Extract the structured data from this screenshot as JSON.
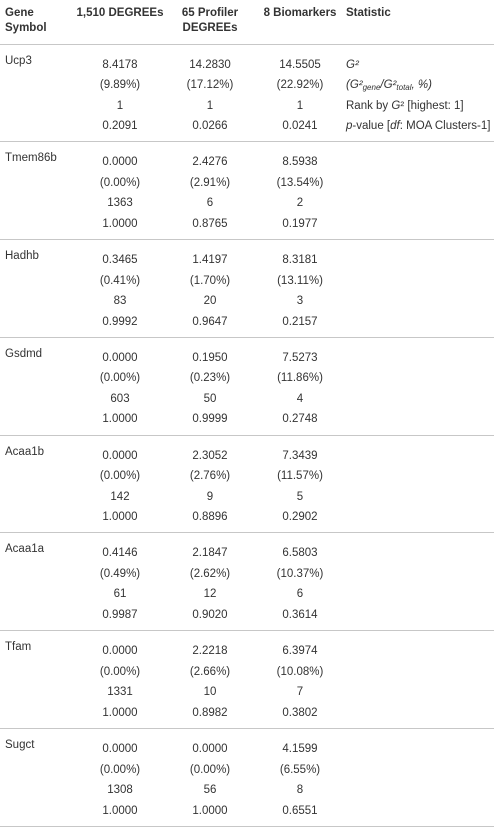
{
  "headers": {
    "gene_symbol": "Gene Symbol",
    "col1": "1,510 DEGREEs",
    "col2": "65 Profiler DEGREEs",
    "col3": "8 Biomarkers",
    "statistic": "Statistic"
  },
  "statistic_labels": {
    "g2": "G²",
    "ratio_prefix": "(G²",
    "ratio_sub1": "gene",
    "ratio_mid": "/G²",
    "ratio_sub2": "total",
    "ratio_suffix": ", %)",
    "rank_prefix": "Rank by ",
    "rank_g": "G",
    "rank_suffix": "² [highest: 1]",
    "pvalue_p": "p",
    "pvalue_mid": "-value [",
    "pvalue_df": "df",
    "pvalue_suffix": ": MOA Clusters-1]"
  },
  "rows": [
    {
      "gene": "Ucp3",
      "c1": [
        "8.4178",
        "(9.89%)",
        "1",
        "0.2091"
      ],
      "c2": [
        "14.2830",
        "(17.12%)",
        "1",
        "0.0266"
      ],
      "c3": [
        "14.5505",
        "(22.92%)",
        "1",
        "0.0241"
      ]
    },
    {
      "gene": "Tmem86b",
      "c1": [
        "0.0000",
        "(0.00%)",
        "1363",
        "1.0000"
      ],
      "c2": [
        "2.4276",
        "(2.91%)",
        "6",
        "0.8765"
      ],
      "c3": [
        "8.5938",
        "(13.54%)",
        "2",
        "0.1977"
      ]
    },
    {
      "gene": "Hadhb",
      "c1": [
        "0.3465",
        "(0.41%)",
        "83",
        "0.9992"
      ],
      "c2": [
        "1.4197",
        "(1.70%)",
        "20",
        "0.9647"
      ],
      "c3": [
        "8.3181",
        "(13.11%)",
        "3",
        "0.2157"
      ]
    },
    {
      "gene": "Gsdmd",
      "c1": [
        "0.0000",
        "(0.00%)",
        "603",
        "1.0000"
      ],
      "c2": [
        "0.1950",
        "(0.23%)",
        "50",
        "0.9999"
      ],
      "c3": [
        "7.5273",
        "(11.86%)",
        "4",
        "0.2748"
      ]
    },
    {
      "gene": "Acaa1b",
      "c1": [
        "0.0000",
        "(0.00%)",
        "142",
        "1.0000"
      ],
      "c2": [
        "2.3052",
        "(2.76%)",
        "9",
        "0.8896"
      ],
      "c3": [
        "7.3439",
        "(11.57%)",
        "5",
        "0.2902"
      ]
    },
    {
      "gene": "Acaa1a",
      "c1": [
        "0.4146",
        "(0.49%)",
        "61",
        "0.9987"
      ],
      "c2": [
        "2.1847",
        "(2.62%)",
        "12",
        "0.9020"
      ],
      "c3": [
        "6.5803",
        "(10.37%)",
        "6",
        "0.3614"
      ]
    },
    {
      "gene": "Tfam",
      "c1": [
        "0.0000",
        "(0.00%)",
        "1331",
        "1.0000"
      ],
      "c2": [
        "2.2218",
        "(2.66%)",
        "10",
        "0.8982"
      ],
      "c3": [
        "6.3974",
        "(10.08%)",
        "7",
        "0.3802"
      ]
    },
    {
      "gene": "Sugct",
      "c1": [
        "0.0000",
        "(0.00%)",
        "1308",
        "1.0000"
      ],
      "c2": [
        "0.0000",
        "(0.00%)",
        "56",
        "1.0000"
      ],
      "c3": [
        "4.1599",
        "(6.55%)",
        "8",
        "0.6551"
      ]
    }
  ]
}
